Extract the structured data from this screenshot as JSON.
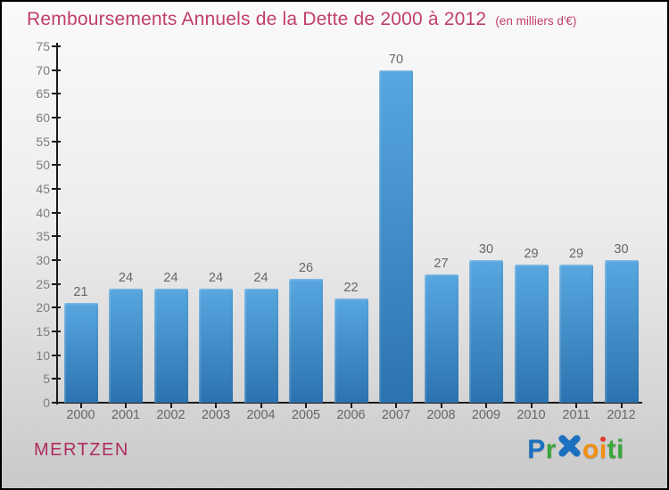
{
  "header": {
    "title": "Remboursements Annuels de la Dette de 2000 à 2012",
    "subtitle": "(en milliers d'€)"
  },
  "chart_data": {
    "type": "bar",
    "title": "Remboursements Annuels de la Dette de 2000 à 2012",
    "subtitle": "(en milliers d'€)",
    "categories": [
      "2000",
      "2001",
      "2002",
      "2003",
      "2004",
      "2005",
      "2006",
      "2007",
      "2008",
      "2009",
      "2010",
      "2011",
      "2012"
    ],
    "values": [
      21,
      24,
      24,
      24,
      24,
      26,
      22,
      70,
      27,
      30,
      29,
      29,
      30
    ],
    "ylim": [
      0,
      75
    ],
    "ytick_step": 5,
    "xlabel": "",
    "ylabel": "",
    "grid": false,
    "legend": "none",
    "bar_color_top": "#58a7e0",
    "bar_color_bottom": "#2b73b0"
  },
  "footer": {
    "commune": "MERTZEN",
    "logo_letters": [
      {
        "ch": "P",
        "color": "#1d70c0"
      },
      {
        "ch": "r",
        "color": "#3aa63c"
      },
      {
        "ch": "x",
        "color": "#1d70c0",
        "style": "x-mark"
      },
      {
        "ch": "o",
        "color": "#f29111"
      },
      {
        "ch": "i",
        "color": "#f29111",
        "dot": "#e23b33"
      },
      {
        "ch": "t",
        "color": "#3aa63c"
      },
      {
        "ch": "i",
        "color": "#3aa63c"
      }
    ],
    "logo_order": [
      "P",
      "r",
      "o",
      "x",
      "i1",
      "t",
      "i2"
    ]
  },
  "colors": {
    "title": "#c13e6c",
    "commune": "#b02d62",
    "axis": "#1a1a1a",
    "tick_label": "#7d7d7d",
    "value_label": "#666666",
    "background_top": "#fafafa",
    "background_bottom": "#c9c9c9"
  }
}
